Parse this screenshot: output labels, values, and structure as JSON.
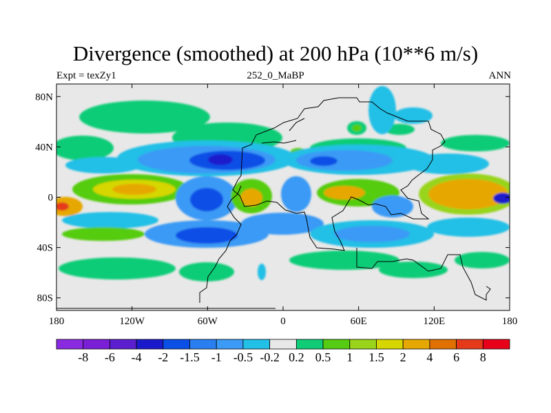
{
  "title": "Divergence (smoothed) at 200 hPa (10**6 m/s)",
  "left_string": "Expt = texZy1",
  "center_string": "252_0_MaBP",
  "right_string": "ANN",
  "colors": {
    "background": "#e8e8e8",
    "land_outline": "#000000"
  },
  "map": {
    "lon_range": [
      -180,
      180
    ],
    "lat_range": [
      -90,
      90
    ],
    "x_ticks": [
      {
        "value": -180,
        "label": "180"
      },
      {
        "value": -120,
        "label": "120W"
      },
      {
        "value": -60,
        "label": "60W"
      },
      {
        "value": 0,
        "label": "0"
      },
      {
        "value": 60,
        "label": "60E"
      },
      {
        "value": 120,
        "label": "120E"
      },
      {
        "value": 180,
        "label": "180"
      }
    ],
    "y_ticks": [
      {
        "value": 80,
        "label": "80N"
      },
      {
        "value": 40,
        "label": "40N"
      },
      {
        "value": 0,
        "label": "0"
      },
      {
        "value": -40,
        "label": "40S"
      },
      {
        "value": -80,
        "label": "80S"
      }
    ]
  },
  "colorbar": {
    "colors": [
      "#8a2be2",
      "#7a1fd6",
      "#5b1fd0",
      "#1a1acc",
      "#0a50e6",
      "#2a7ff0",
      "#3a9af5",
      "#22bfe6",
      "#e8e8e8",
      "#11cc77",
      "#55cc11",
      "#99d41a",
      "#d6d600",
      "#e6a800",
      "#e07000",
      "#e53a1a",
      "#e8001a"
    ],
    "labels": [
      "-8",
      "-6",
      "-4",
      "-2",
      "-1.5",
      "-1",
      "-0.5",
      "-0.2",
      "0.2",
      "0.5",
      "1",
      "1.5",
      "2",
      "4",
      "6",
      "8"
    ]
  }
}
